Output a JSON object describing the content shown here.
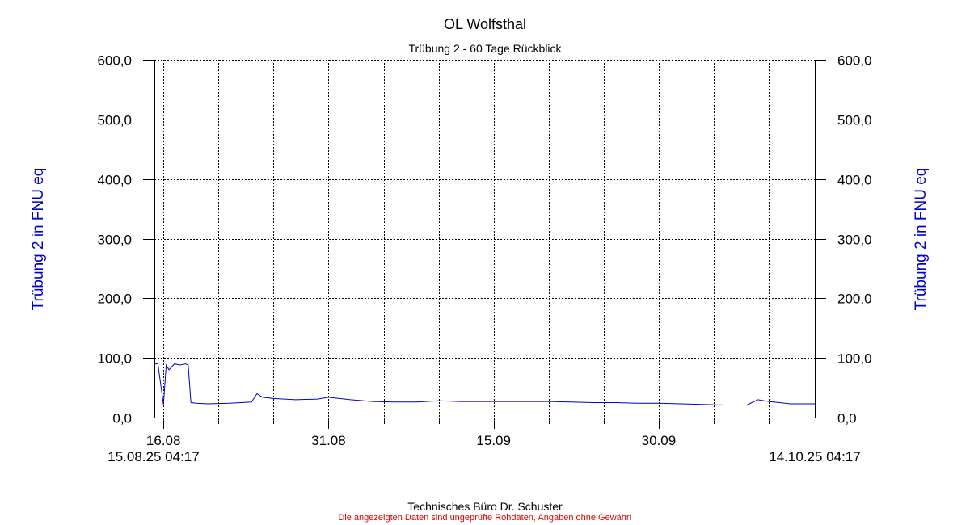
{
  "title": "OL Wolfsthal",
  "subtitle": "Trübung 2 - 60 Tage Rückblick",
  "footer": {
    "company": "Technisches Büro Dr. Schuster",
    "disclaimer": "Die angezeigten Daten sind ungeprüfte Rohdaten, Angaben ohne Gewähr!"
  },
  "colors": {
    "series": "#0000cc",
    "axis_label": "#0000cc",
    "disclaimer": "#e00000"
  },
  "chart_data": {
    "type": "line",
    "ylabel_left": "Trübung 2 in FNU eq",
    "ylabel_right": "Trübung 2 in FNU eq",
    "ylim": [
      0,
      600
    ],
    "yticks": [
      "0,0",
      "100,0",
      "200,0",
      "300,0",
      "400,0",
      "500,0",
      "600,0"
    ],
    "xlim": [
      "2025-08-15 04:17",
      "2025-10-14 04:17"
    ],
    "xtick_labels": [
      {
        "date": "2025-08-16",
        "label": "16.08"
      },
      {
        "date": "2025-08-31",
        "label": "31.08"
      },
      {
        "date": "2025-09-15",
        "label": "15.09"
      },
      {
        "date": "2025-09-30",
        "label": "30.09"
      }
    ],
    "x_range_labels": {
      "start": "15.08.25 04:17",
      "end": "14.10.25 04:17"
    },
    "grid": true,
    "series": [
      {
        "x": [
          "2025-08-15 04:17",
          "2025-08-15 12:00",
          "2025-08-16 00:00",
          "2025-08-16 06:00",
          "2025-08-16 12:00",
          "2025-08-17 00:00",
          "2025-08-17 12:00",
          "2025-08-18 00:00",
          "2025-08-18 06:00",
          "2025-08-18 12:00",
          "2025-08-19 00:00",
          "2025-08-20 00:00",
          "2025-08-22 00:00",
          "2025-08-24 00:00",
          "2025-08-24 12:00",
          "2025-08-25 00:00",
          "2025-08-26 00:00",
          "2025-08-28 00:00",
          "2025-08-30 00:00",
          "2025-08-31 00:00",
          "2025-09-02 00:00",
          "2025-09-04 00:00",
          "2025-09-06 00:00",
          "2025-09-08 00:00",
          "2025-09-10 00:00",
          "2025-09-12 00:00",
          "2025-09-14 00:00",
          "2025-09-16 00:00",
          "2025-09-18 00:00",
          "2025-09-20 00:00",
          "2025-09-22 00:00",
          "2025-09-24 00:00",
          "2025-09-26 00:00",
          "2025-09-28 00:00",
          "2025-09-30 00:00",
          "2025-10-02 00:00",
          "2025-10-04 00:00",
          "2025-10-06 00:00",
          "2025-10-08 00:00",
          "2025-10-09 00:00",
          "2025-10-10 00:00",
          "2025-10-12 00:00",
          "2025-10-14 04:17"
        ],
        "y": [
          90,
          90,
          22,
          88,
          80,
          90,
          88,
          90,
          88,
          25,
          24,
          23,
          24,
          26,
          40,
          34,
          32,
          30,
          31,
          34,
          30,
          27,
          26,
          26,
          28,
          27,
          27,
          27,
          27,
          27,
          26,
          25,
          25,
          24,
          24,
          23,
          22,
          21,
          21,
          30,
          27,
          23,
          23
        ]
      }
    ]
  }
}
